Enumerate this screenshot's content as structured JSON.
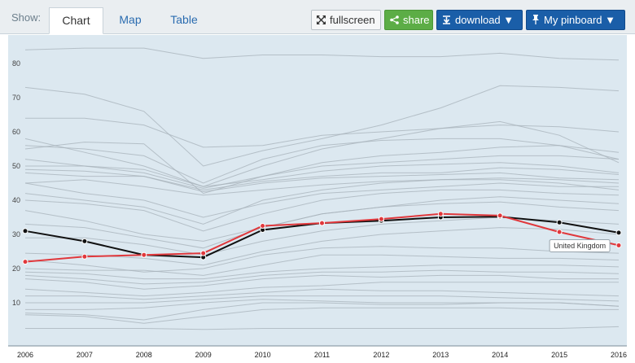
{
  "toolbar": {
    "show_label": "Show:",
    "tabs": [
      {
        "label": "Chart",
        "active": true
      },
      {
        "label": "Map",
        "active": false
      },
      {
        "label": "Table",
        "active": false
      }
    ],
    "fullscreen_label": "fullscreen",
    "share_label": "share",
    "download_label": "download ▼",
    "pinboard_label": "My pinboard ▼",
    "icons": {
      "fullscreen": "expand-arrows-icon",
      "share": "share-icon",
      "download": "download-arrow-icon",
      "pinboard": "pin-icon"
    },
    "colors": {
      "share": "#5cad46",
      "download": "#1a5ea8",
      "pinboard": "#1a5ea8"
    }
  },
  "chart_data": {
    "type": "line",
    "x": [
      "2006",
      "2007",
      "2008",
      "2009",
      "2010",
      "2011",
      "2012",
      "2013",
      "2014",
      "2015",
      "2016"
    ],
    "ylim": [
      0,
      87
    ],
    "yticks": [
      10,
      20,
      30,
      40,
      50,
      60,
      70,
      80
    ],
    "grid": false,
    "background_color": "#dce8f0",
    "highlight_series": {
      "name": "United Kingdom",
      "color": "#e0383c",
      "values": [
        22,
        23.5,
        24,
        24.5,
        32.5,
        33.3,
        34.5,
        36,
        35.5,
        30.7,
        26.8
      ]
    },
    "benchmark_series": {
      "color": "#111111",
      "values": [
        31,
        28,
        24,
        23.3,
        31.3,
        33.3,
        34,
        35,
        35.2,
        33.5,
        30.5
      ]
    },
    "background_series_color": "#a7b2b9",
    "background_series": [
      [
        84,
        84.5,
        84.5,
        81.5,
        82.5,
        82.5,
        82,
        82,
        83,
        81.5,
        81
      ],
      [
        73,
        71,
        66,
        50,
        54.5,
        58,
        62,
        67,
        73.5,
        73,
        72
      ],
      [
        64,
        64,
        62,
        55.5,
        56,
        59,
        60,
        61,
        62,
        61.5,
        60
      ],
      [
        58,
        54,
        50,
        44,
        50,
        55,
        58,
        61,
        63,
        59,
        51
      ],
      [
        56,
        55,
        53,
        45,
        52,
        56,
        57.5,
        58,
        58,
        56,
        54
      ],
      [
        55,
        57,
        56.5,
        42,
        47,
        51,
        53,
        54,
        55.5,
        56,
        52
      ],
      [
        52,
        50,
        48,
        43.5,
        47,
        50,
        51,
        52,
        53,
        53,
        52
      ],
      [
        50,
        50,
        49,
        44,
        46,
        48.5,
        50,
        50.5,
        51,
        50,
        48
      ],
      [
        49,
        48.5,
        47,
        43,
        45.5,
        47,
        48,
        48,
        49.5,
        49,
        47.5
      ],
      [
        48,
        47,
        47,
        42.5,
        45,
        46.5,
        47,
        47.5,
        48,
        46.5,
        46
      ],
      [
        45,
        46,
        44,
        41.5,
        43,
        44.5,
        45.5,
        46,
        46.5,
        46,
        45
      ],
      [
        45,
        42,
        40,
        35,
        39,
        42,
        43,
        44,
        45,
        44,
        44
      ],
      [
        42,
        40,
        38,
        33,
        40,
        43,
        45,
        46,
        46,
        45,
        43
      ],
      [
        40,
        39,
        37,
        31,
        36,
        40,
        42,
        43,
        43,
        42,
        41.5
      ],
      [
        37,
        34,
        30,
        28,
        32,
        36,
        38,
        40,
        41,
        40,
        39
      ],
      [
        33,
        32,
        29,
        26,
        32,
        36,
        38,
        39,
        39.5,
        38,
        37
      ],
      [
        29,
        29,
        27,
        24,
        28,
        31,
        33,
        34,
        35,
        34,
        33
      ],
      [
        24.5,
        24,
        23,
        21,
        25,
        28,
        30,
        31,
        32,
        31.5,
        30
      ],
      [
        22.5,
        21,
        19,
        20,
        24,
        26,
        26.5,
        26,
        26,
        25,
        24.5
      ],
      [
        20,
        19.5,
        19.5,
        18,
        21,
        24,
        24,
        23.5,
        23,
        23,
        22.5
      ],
      [
        19,
        18.5,
        17,
        17,
        19,
        20,
        20.5,
        21,
        21,
        21,
        20.5
      ],
      [
        18,
        17,
        15.5,
        16,
        18,
        19,
        19,
        19.5,
        19,
        19,
        18.5
      ],
      [
        17,
        16,
        14,
        15,
        17,
        18,
        17.5,
        18,
        18,
        17,
        17
      ],
      [
        14,
        13,
        12,
        13,
        14.5,
        15,
        16,
        16,
        16,
        16,
        16
      ],
      [
        12,
        12,
        11,
        12,
        13,
        14,
        13.5,
        13.5,
        13,
        12.5,
        12
      ],
      [
        10,
        10,
        10,
        11,
        12,
        12,
        12,
        12,
        11.5,
        11,
        10.5
      ],
      [
        8,
        8,
        8.5,
        10,
        11,
        10.5,
        10,
        10,
        10,
        10,
        9
      ],
      [
        7,
        6.5,
        5,
        8,
        10,
        10,
        9.5,
        9.5,
        10,
        10,
        9
      ],
      [
        6.5,
        6,
        4,
        6,
        8,
        8.5,
        8.5,
        8.5,
        8.5,
        8,
        8
      ],
      [
        2.5,
        2.5,
        2.5,
        2.2,
        2.5,
        2.5,
        2.5,
        2.5,
        2.5,
        2.5,
        3
      ]
    ],
    "annotation": {
      "text": "United Kingdom",
      "x": "2015",
      "y": 26.8
    }
  }
}
